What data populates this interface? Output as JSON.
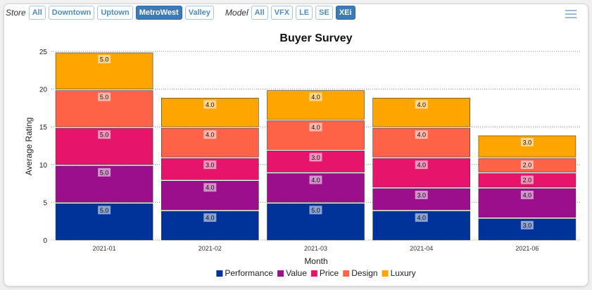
{
  "filters": {
    "store_label": "Store",
    "store_options": [
      "All",
      "Downtown",
      "Uptown",
      "MetroWest",
      "Valley"
    ],
    "store_selected": "MetroWest",
    "model_label": "Model",
    "model_options": [
      "All",
      "VFX",
      "LE",
      "SE",
      "XEi"
    ],
    "model_selected": "XEi"
  },
  "menu_icon": "hamburger-menu-icon",
  "chart_data": {
    "type": "bar",
    "stacked": true,
    "title": "Buyer Survey",
    "xlabel": "Month",
    "ylabel": "Average Rating",
    "ylim": [
      0,
      25
    ],
    "yticks": [
      0,
      5,
      10,
      15,
      20,
      25
    ],
    "grid": true,
    "legend_position": "bottom",
    "categories": [
      "2021-01",
      "2021-02",
      "2021-03",
      "2021-04",
      "2021-06"
    ],
    "series": [
      {
        "name": "Performance",
        "color": "#00339a",
        "values": [
          5.0,
          4.0,
          5.0,
          4.0,
          3.0
        ]
      },
      {
        "name": "Value",
        "color": "#9c0f8c",
        "values": [
          5.0,
          4.0,
          4.0,
          3.0,
          4.0
        ]
      },
      {
        "name": "Price",
        "color": "#e6146b",
        "values": [
          5.0,
          3.0,
          3.0,
          4.0,
          2.0
        ]
      },
      {
        "name": "Design",
        "color": "#ff6347",
        "values": [
          5.0,
          4.0,
          4.0,
          4.0,
          2.0
        ]
      },
      {
        "name": "Luxury",
        "color": "#ffa500",
        "values": [
          5.0,
          4.0,
          4.0,
          4.0,
          3.0
        ]
      }
    ]
  }
}
